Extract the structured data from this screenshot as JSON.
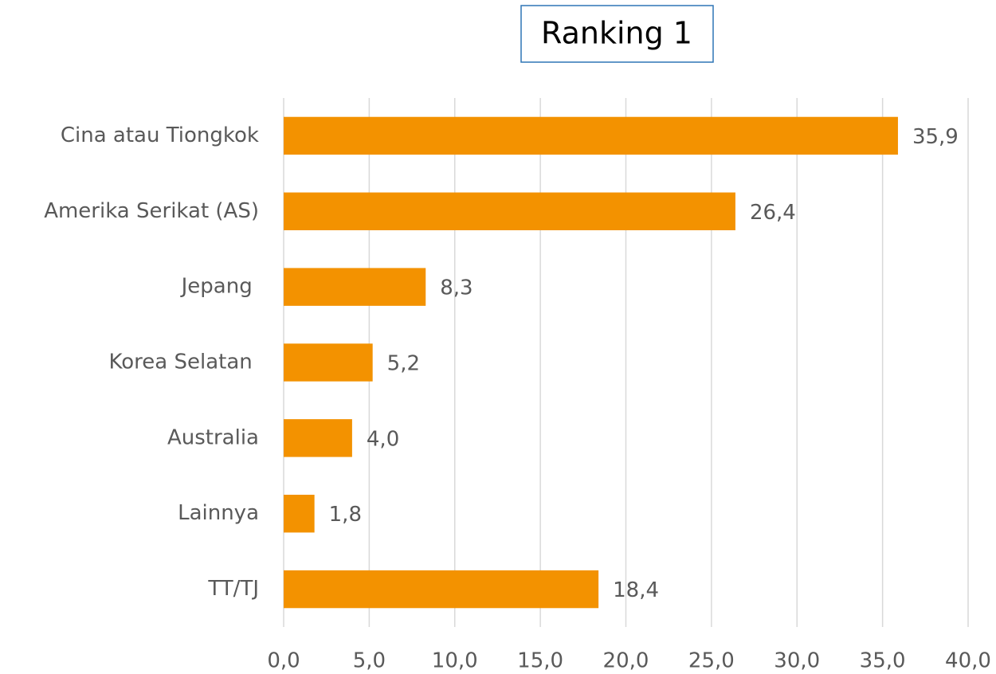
{
  "chart_data": {
    "type": "barh",
    "title": "Ranking 1",
    "categories": [
      "Cina atau Tiongkok",
      "Amerika Serikat (AS)",
      "Jepang ",
      "Korea Selatan ",
      "Australia",
      "Lainnya",
      "TT/TJ"
    ],
    "values": [
      35.9,
      26.4,
      8.3,
      5.2,
      4.0,
      1.8,
      18.4
    ],
    "value_labels": [
      "35,9",
      "26,4",
      "8,3",
      "5,2",
      "4,0",
      "1,8",
      "18,4"
    ],
    "color": "#f39200",
    "xlim": [
      0,
      40
    ],
    "xticks": [
      {
        "value": 0,
        "label": "0,0"
      },
      {
        "value": 5,
        "label": "5,0"
      },
      {
        "value": 10,
        "label": "10,0"
      },
      {
        "value": 15,
        "label": "15,0"
      },
      {
        "value": 20,
        "label": "20,0"
      },
      {
        "value": 25,
        "label": "25,0"
      },
      {
        "value": 30,
        "label": "30,0"
      },
      {
        "value": 35,
        "label": "35,0"
      },
      {
        "value": 40,
        "label": "40,0"
      }
    ],
    "grid": true
  }
}
